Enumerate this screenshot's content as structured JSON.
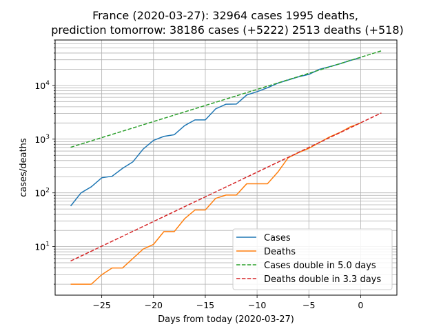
{
  "chart_data": {
    "type": "line",
    "title_line1": "France (2020-03-27): 32964 cases 1995 deaths,",
    "title_line2": "prediction tomorrow: 38186 cases (+5222) 2513 deaths (+518)",
    "xlabel": "Days from today (2020-03-27)",
    "ylabel": "cases/deaths",
    "x_scale": "linear",
    "y_scale": "log",
    "xlim": [
      -29.5,
      3.5
    ],
    "ylim": [
      1.25,
      70000
    ],
    "x_ticks": [
      -25,
      -20,
      -15,
      -10,
      -5,
      0
    ],
    "x_tick_labels": [
      "−25",
      "−20",
      "−15",
      "−10",
      "−5",
      "0"
    ],
    "y_ticks": [
      10,
      100,
      1000,
      10000
    ],
    "y_tick_labels": [
      {
        "base": "10",
        "exp": "1"
      },
      {
        "base": "10",
        "exp": "2"
      },
      {
        "base": "10",
        "exp": "3"
      },
      {
        "base": "10",
        "exp": "4"
      }
    ],
    "grid": true,
    "legend_position": "lower-right",
    "series": [
      {
        "name": "Cases",
        "color": "#1f77b4",
        "style": "solid",
        "x": [
          -28,
          -27,
          -26,
          -25,
          -24,
          -23,
          -22,
          -21,
          -20,
          -19,
          -18,
          -17,
          -16,
          -15,
          -14,
          -13,
          -12,
          -11,
          -10,
          -9,
          -8,
          -7,
          -6,
          -5,
          -4,
          -3,
          -2,
          -1,
          0
        ],
        "y": [
          57,
          100,
          130,
          191,
          204,
          285,
          377,
          653,
          949,
          1126,
          1209,
          1784,
          2281,
          2281,
          3661,
          4469,
          4499,
          6633,
          7652,
          9043,
          10995,
          12612,
          14459,
          16018,
          19856,
          22302,
          25233,
          29155,
          32964
        ]
      },
      {
        "name": "Deaths",
        "color": "#ff7f0e",
        "style": "solid",
        "x": [
          -28,
          -27,
          -26,
          -25,
          -24,
          -23,
          -22,
          -21,
          -20,
          -19,
          -18,
          -17,
          -16,
          -15,
          -14,
          -13,
          -12,
          -11,
          -10,
          -9,
          -8,
          -7,
          -6,
          -5,
          -4,
          -3,
          -2,
          -1,
          0
        ],
        "y": [
          2,
          2,
          2,
          3,
          4,
          4,
          6,
          9,
          11,
          19,
          19,
          33,
          48,
          48,
          79,
          91,
          91,
          148,
          148,
          148,
          243,
          450,
          562,
          674,
          860,
          1100,
          1331,
          1696,
          1995
        ]
      },
      {
        "name": "Cases double in 5.0 days",
        "color": "#2ca02c",
        "style": "dashed",
        "x": [
          -28,
          2
        ],
        "y": [
          706,
          44000
        ]
      },
      {
        "name": "Deaths double in 3.3 days",
        "color": "#d62728",
        "style": "dashed",
        "x": [
          -28,
          2
        ],
        "y": [
          5.4,
          3075
        ]
      }
    ]
  }
}
